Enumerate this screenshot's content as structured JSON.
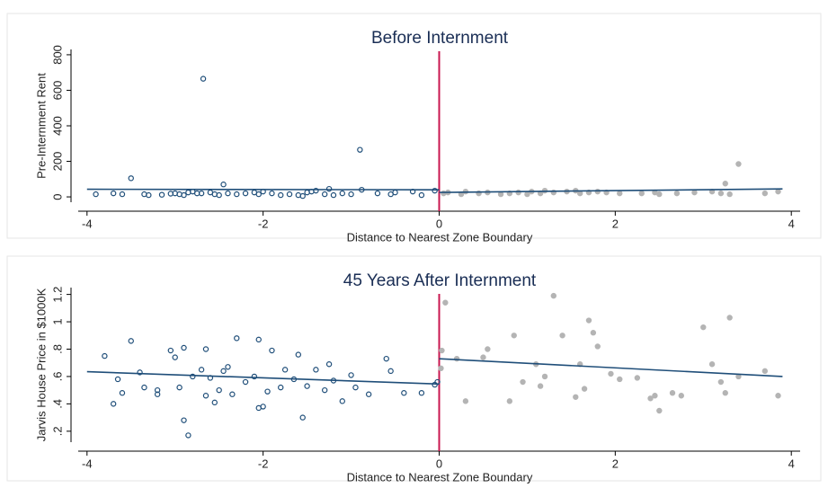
{
  "chart_data": [
    {
      "type": "scatter",
      "title": "Before Internment",
      "xlabel": "Distance to Nearest Zone Boundary",
      "ylabel": "Pre-Internment Rent",
      "xlim": [
        -4.1,
        4.1
      ],
      "xticks": [
        -4,
        -2,
        0,
        2,
        4
      ],
      "ylim": [
        -30,
        830
      ],
      "yticks": [
        0,
        200,
        400,
        600,
        800
      ],
      "cutoff": 0,
      "cutoff_color": "#c8174f",
      "series": [
        {
          "color": "#1f4e79",
          "marker": "open",
          "x": [
            -3.9,
            -3.7,
            -3.6,
            -3.5,
            -3.35,
            -3.3,
            -3.15,
            -3.05,
            -3.0,
            -2.95,
            -2.9,
            -2.85,
            -2.8,
            -2.75,
            -2.7,
            -2.68,
            -2.6,
            -2.55,
            -2.5,
            -2.45,
            -2.4,
            -2.3,
            -2.2,
            -2.1,
            -2.05,
            -2.0,
            -1.9,
            -1.8,
            -1.7,
            -1.6,
            -1.55,
            -1.5,
            -1.45,
            -1.4,
            -1.3,
            -1.25,
            -1.2,
            -1.1,
            -1.0,
            -0.9,
            -0.88,
            -0.7,
            -0.55,
            -0.5,
            -0.3,
            -0.2,
            -0.05
          ],
          "values": [
            15,
            20,
            15,
            105,
            15,
            10,
            12,
            18,
            20,
            15,
            10,
            25,
            30,
            20,
            20,
            665,
            25,
            15,
            10,
            70,
            20,
            15,
            20,
            25,
            15,
            30,
            20,
            10,
            15,
            10,
            5,
            25,
            30,
            35,
            15,
            45,
            10,
            20,
            15,
            265,
            40,
            20,
            15,
            25,
            30,
            10,
            35
          ]
        },
        {
          "color": "#b4b4b4",
          "marker": "filled",
          "x": [
            0.05,
            0.1,
            0.25,
            0.3,
            0.45,
            0.55,
            0.7,
            0.8,
            0.9,
            1.0,
            1.05,
            1.15,
            1.2,
            1.3,
            1.45,
            1.55,
            1.6,
            1.7,
            1.8,
            1.9,
            2.05,
            2.3,
            2.45,
            2.5,
            2.7,
            2.9,
            3.1,
            3.2,
            3.25,
            3.3,
            3.4,
            3.7,
            3.85
          ],
          "values": [
            20,
            25,
            15,
            30,
            20,
            25,
            15,
            20,
            25,
            15,
            30,
            20,
            35,
            25,
            30,
            35,
            20,
            25,
            30,
            25,
            20,
            20,
            25,
            15,
            20,
            25,
            30,
            20,
            75,
            15,
            185,
            20,
            30
          ]
        }
      ],
      "fit_lines": [
        {
          "color": "#1f4e79",
          "x": [
            -4,
            0
          ],
          "values": [
            43,
            40
          ]
        },
        {
          "color": "#1f4e79",
          "x": [
            0,
            3.9
          ],
          "values": [
            25,
            45
          ]
        }
      ]
    },
    {
      "type": "scatter",
      "title": "45 Years After Internment",
      "xlabel": "Distance to Nearest Zone Boundary",
      "ylabel": "Jarvis House Price in $1000K",
      "xlim": [
        -4.1,
        4.1
      ],
      "xticks": [
        -4,
        -2,
        0,
        2,
        4
      ],
      "ylim": [
        0.12,
        1.25
      ],
      "yticks": [
        {
          "value": 0.2,
          "label": ".2"
        },
        {
          "value": 0.4,
          "label": ".4"
        },
        {
          "value": 0.6,
          "label": ".6"
        },
        {
          "value": 0.8,
          "label": ".8"
        },
        1,
        1.2
      ],
      "cutoff": 0,
      "cutoff_color": "#c8174f",
      "series": [
        {
          "color": "#1f4e79",
          "marker": "open",
          "x": [
            -3.8,
            -3.7,
            -3.65,
            -3.6,
            -3.5,
            -3.4,
            -3.35,
            -3.2,
            -3.2,
            -3.05,
            -3.0,
            -2.95,
            -2.9,
            -2.9,
            -2.85,
            -2.8,
            -2.7,
            -2.65,
            -2.65,
            -2.6,
            -2.55,
            -2.5,
            -2.45,
            -2.4,
            -2.35,
            -2.3,
            -2.2,
            -2.1,
            -2.05,
            -2.05,
            -2.0,
            -1.95,
            -1.9,
            -1.8,
            -1.75,
            -1.65,
            -1.6,
            -1.55,
            -1.5,
            -1.4,
            -1.3,
            -1.25,
            -1.2,
            -1.1,
            -1.0,
            -0.95,
            -0.8,
            -0.6,
            -0.55,
            -0.4,
            -0.2,
            -0.05,
            -0.02
          ],
          "values": [
            0.75,
            0.4,
            0.58,
            0.48,
            0.86,
            0.63,
            0.52,
            0.5,
            0.47,
            0.79,
            0.74,
            0.52,
            0.81,
            0.28,
            0.17,
            0.6,
            0.65,
            0.8,
            0.46,
            0.59,
            0.41,
            0.5,
            0.64,
            0.67,
            0.47,
            0.88,
            0.56,
            0.6,
            0.87,
            0.37,
            0.38,
            0.49,
            0.79,
            0.52,
            0.65,
            0.58,
            0.76,
            0.3,
            0.53,
            0.65,
            0.5,
            0.69,
            0.57,
            0.42,
            0.61,
            0.52,
            0.47,
            0.73,
            0.64,
            0.48,
            0.48,
            0.54,
            0.56
          ]
        },
        {
          "color": "#b4b4b4",
          "marker": "filled",
          "x": [
            0.02,
            0.03,
            0.07,
            0.2,
            0.3,
            0.5,
            0.55,
            0.8,
            0.85,
            0.95,
            1.1,
            1.15,
            1.2,
            1.3,
            1.4,
            1.55,
            1.6,
            1.65,
            1.7,
            1.75,
            1.8,
            1.95,
            2.05,
            2.25,
            2.4,
            2.45,
            2.5,
            2.65,
            2.75,
            3.0,
            3.1,
            3.2,
            3.25,
            3.3,
            3.4,
            3.7,
            3.85
          ],
          "values": [
            0.66,
            0.79,
            1.14,
            0.73,
            0.42,
            0.74,
            0.8,
            0.42,
            0.9,
            0.56,
            0.69,
            0.53,
            0.6,
            1.19,
            0.9,
            0.45,
            0.69,
            0.51,
            1.01,
            0.92,
            0.82,
            0.62,
            0.58,
            0.59,
            0.44,
            0.46,
            0.35,
            0.48,
            0.46,
            0.96,
            0.69,
            0.56,
            0.48,
            1.03,
            0.6,
            0.64,
            0.46
          ]
        }
      ],
      "fit_lines": [
        {
          "color": "#1f4e79",
          "x": [
            -4,
            0
          ],
          "values": [
            0.635,
            0.545
          ]
        },
        {
          "color": "#1f4e79",
          "x": [
            0,
            3.9
          ],
          "values": [
            0.73,
            0.6
          ]
        }
      ]
    }
  ]
}
